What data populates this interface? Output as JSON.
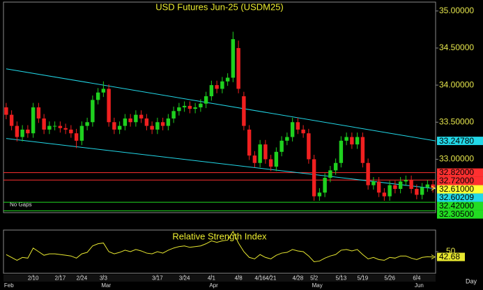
{
  "chart_data": [
    {
      "type": "candlestick",
      "title": "USD  Futures  Jun-25  (USDM25)",
      "note": "No Gaps",
      "x_label": "Day",
      "categories": [
        null,
        null,
        null,
        null,
        null,
        "2/10",
        null,
        null,
        null,
        null,
        "2/17",
        null,
        null,
        null,
        "2/24",
        null,
        null,
        null,
        "3/3",
        null,
        null,
        null,
        null,
        null,
        null,
        null,
        null,
        null,
        "3/17",
        null,
        null,
        null,
        null,
        "3/24",
        null,
        null,
        null,
        null,
        "4/1",
        null,
        null,
        null,
        null,
        "4/8",
        null,
        null,
        null,
        "4/16",
        null,
        "4/21",
        null,
        null,
        null,
        null,
        "4/28",
        null,
        null,
        "5/2",
        null,
        null,
        null,
        null,
        "5/13",
        null,
        null,
        null,
        "5/19",
        null,
        null,
        null,
        null,
        "5/26",
        null,
        null,
        null,
        null,
        "6/4",
        null,
        null,
        null
      ],
      "months": [
        "Feb",
        null,
        null,
        null,
        null,
        null,
        null,
        null,
        null,
        null,
        null,
        null,
        null,
        null,
        null,
        null,
        null,
        null,
        "Mar",
        null,
        null,
        null,
        null,
        null,
        null,
        null,
        null,
        null,
        null,
        null,
        null,
        null,
        null,
        null,
        null,
        null,
        null,
        null,
        "Apr",
        null,
        null,
        null,
        null,
        null,
        null,
        null,
        null,
        null,
        null,
        null,
        null,
        null,
        null,
        null,
        null,
        null,
        null,
        "May",
        null,
        null,
        null,
        null,
        null,
        null,
        null,
        null,
        null,
        null,
        null,
        null,
        null,
        null,
        null,
        null,
        null,
        null,
        "Jun",
        null,
        null,
        null
      ],
      "open": [
        33.7,
        33.6,
        33.45,
        33.3,
        33.4,
        33.35,
        33.7,
        33.55,
        33.4,
        33.45,
        33.45,
        33.42,
        33.4,
        33.35,
        33.25,
        33.45,
        33.5,
        33.8,
        33.9,
        33.95,
        33.5,
        33.4,
        33.45,
        33.55,
        33.5,
        33.6,
        33.55,
        33.45,
        33.4,
        33.5,
        33.45,
        33.55,
        33.65,
        33.7,
        33.72,
        33.68,
        33.7,
        33.75,
        33.85,
        34.0,
        33.95,
        34.05,
        34.1,
        34.5,
        33.85,
        33.4,
        33.05,
        32.95,
        33.2,
        33.0,
        32.9,
        33.1,
        33.25,
        33.3,
        33.5,
        33.4,
        33.35,
        33.0,
        32.5,
        32.55,
        32.75,
        32.85,
        32.95,
        33.25,
        33.3,
        33.2,
        33.3,
        32.95,
        32.65,
        32.7,
        32.55,
        32.5,
        32.65,
        32.6,
        32.7,
        32.72,
        32.6,
        32.52,
        32.62,
        32.66
      ],
      "high": [
        33.76,
        33.66,
        33.51,
        33.46,
        33.46,
        33.76,
        33.76,
        33.61,
        33.51,
        33.51,
        33.51,
        33.48,
        33.46,
        33.41,
        33.51,
        33.56,
        33.86,
        33.96,
        34.05,
        34.01,
        33.56,
        33.51,
        33.61,
        33.61,
        33.66,
        33.66,
        33.61,
        33.51,
        33.56,
        33.56,
        33.61,
        33.71,
        33.76,
        33.78,
        33.78,
        33.76,
        33.81,
        33.91,
        34.06,
        34.06,
        34.11,
        34.16,
        34.72,
        34.6,
        33.91,
        33.46,
        33.11,
        33.26,
        33.26,
        33.06,
        33.16,
        33.31,
        33.36,
        33.56,
        33.56,
        33.46,
        33.41,
        33.06,
        32.61,
        32.81,
        32.91,
        33.01,
        33.31,
        33.36,
        33.36,
        33.36,
        33.36,
        33.01,
        32.76,
        32.76,
        32.61,
        32.71,
        32.71,
        32.76,
        32.78,
        32.78,
        32.66,
        32.68,
        32.72,
        32.72
      ],
      "low": [
        33.54,
        33.39,
        33.24,
        33.24,
        33.29,
        33.29,
        33.49,
        33.34,
        33.34,
        33.39,
        33.36,
        33.34,
        33.29,
        33.15,
        33.19,
        33.39,
        33.44,
        33.74,
        33.84,
        33.44,
        33.34,
        33.34,
        33.39,
        33.44,
        33.44,
        33.49,
        33.39,
        33.34,
        33.34,
        33.39,
        33.39,
        33.49,
        33.59,
        33.64,
        33.62,
        33.62,
        33.64,
        33.69,
        33.79,
        33.89,
        33.89,
        33.99,
        34.04,
        33.89,
        33.39,
        32.99,
        32.89,
        32.89,
        32.94,
        32.84,
        32.84,
        33.04,
        33.19,
        33.24,
        33.34,
        33.29,
        32.94,
        32.44,
        32.44,
        32.49,
        32.69,
        32.79,
        32.89,
        33.19,
        33.14,
        33.14,
        32.89,
        32.59,
        32.59,
        32.49,
        32.44,
        32.44,
        32.54,
        32.54,
        32.64,
        32.54,
        32.46,
        32.46,
        32.56,
        32.55
      ],
      "close": [
        33.6,
        33.45,
        33.3,
        33.4,
        33.35,
        33.7,
        33.55,
        33.4,
        33.45,
        33.45,
        33.42,
        33.4,
        33.35,
        33.25,
        33.45,
        33.5,
        33.8,
        33.9,
        33.95,
        33.5,
        33.4,
        33.45,
        33.55,
        33.5,
        33.6,
        33.55,
        33.45,
        33.4,
        33.5,
        33.45,
        33.55,
        33.65,
        33.7,
        33.72,
        33.68,
        33.7,
        33.75,
        33.85,
        34.0,
        33.95,
        34.05,
        34.1,
        34.62,
        33.95,
        33.45,
        33.05,
        32.95,
        33.2,
        33.0,
        32.9,
        33.1,
        33.25,
        33.3,
        33.5,
        33.4,
        33.35,
        33.0,
        32.5,
        32.55,
        32.75,
        32.85,
        32.95,
        33.25,
        33.3,
        33.2,
        33.3,
        32.95,
        32.65,
        32.7,
        32.55,
        32.5,
        32.65,
        32.6,
        32.7,
        32.72,
        32.6,
        32.52,
        32.62,
        32.66,
        32.61
      ],
      "up_color": "#1fd11f",
      "down_color": "#f02020",
      "ylim": [
        32.28,
        35.12
      ],
      "yticks": [
        {
          "value": 35,
          "label": "35.00000"
        },
        {
          "value": 34.5,
          "label": "34.50000"
        },
        {
          "value": 34,
          "label": "34.00000"
        },
        {
          "value": 33.5,
          "label": "33.50000"
        },
        {
          "value": 33,
          "label": "33.00000"
        }
      ],
      "trendlines": [
        {
          "color": "#22d8e8",
          "start": 34.22,
          "end": {
            "value": 33.2478,
            "label": "33.24780"
          }
        },
        {
          "color": "#22d8e8",
          "start": 33.28,
          "end": {
            "value": 32.60209,
            "label": "32.60209"
          }
        }
      ],
      "levels": [
        {
          "value": 32.82,
          "label": "32.82000",
          "color": "#ff3030"
        },
        {
          "value": 32.72,
          "label": "32.72000",
          "color": "#ff3030"
        },
        {
          "value": 32.42,
          "label": "32.42000",
          "color": "#22dd22"
        },
        {
          "value": 32.305,
          "label": "32.30500",
          "color": "#22dd22"
        }
      ],
      "last": {
        "value": 32.61,
        "label": "32.61000",
        "color": "#ffff33"
      }
    },
    {
      "type": "line",
      "title": "Relative Strength Index",
      "color": "#e8e830",
      "values": [
        46,
        42,
        38,
        42,
        41,
        55,
        50,
        45,
        47,
        47,
        46,
        45,
        44,
        41,
        47,
        49,
        58,
        61,
        62,
        50,
        47,
        49,
        52,
        50,
        53,
        51,
        48,
        47,
        50,
        48,
        52,
        55,
        57,
        58,
        56,
        57,
        58,
        61,
        65,
        63,
        65,
        66,
        78,
        62,
        50,
        42,
        40,
        46,
        42,
        40,
        45,
        48,
        49,
        53,
        51,
        50,
        44,
        36,
        37,
        41,
        44,
        46,
        52,
        53,
        51,
        53,
        46,
        40,
        42,
        39,
        38,
        42,
        41,
        44,
        44,
        41,
        39,
        42,
        43,
        42.68
      ],
      "ylim": [
        20,
        80
      ],
      "yticks": [
        50
      ]
    }
  ]
}
